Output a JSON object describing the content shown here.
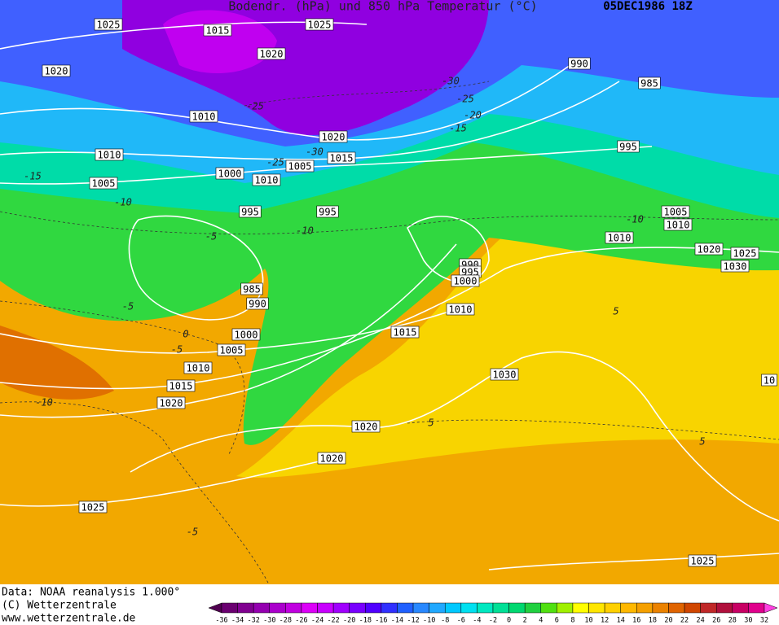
{
  "header": {
    "title": "Bodendr. (hPa) und 850 hPa Temperatur (°C)",
    "date": "05DEC1986 18Z"
  },
  "isobar_labels": [
    1025,
    1015,
    1025,
    1020,
    1020,
    990,
    985,
    1010,
    1020,
    995,
    1010,
    1015,
    1005,
    1000,
    1010,
    1005,
    995,
    995,
    1005,
    1010,
    1010,
    1020,
    1025,
    1030,
    990,
    995,
    1000,
    985,
    990,
    1010,
    1015,
    1000,
    1005,
    1010,
    1015,
    1020,
    1030,
    1020,
    1020,
    1025,
    1025,
    10
  ],
  "temperature_labels": [
    -25,
    -30,
    -25,
    -15,
    -20,
    -30,
    -25,
    -15,
    -10,
    -10,
    -5,
    -10,
    -5,
    0,
    -5,
    -10,
    5,
    5,
    5,
    -5
  ],
  "footer": {
    "lines": [
      "Data: NOAA reanalysis 1.000°",
      "(C) Wetterzentrale",
      "www.wetterzentrale.de"
    ]
  },
  "legend": {
    "labels": [
      -36,
      -34,
      -32,
      -30,
      -28,
      -26,
      -24,
      -22,
      -20,
      -18,
      -16,
      -14,
      -12,
      -10,
      -8,
      -6,
      -4,
      -2,
      0,
      2,
      4,
      6,
      8,
      10,
      12,
      14,
      16,
      18,
      20,
      22,
      24,
      26,
      28,
      30,
      32
    ],
    "colors": [
      "#500050",
      "#6a0070",
      "#800090",
      "#9400b0",
      "#aa00cc",
      "#c000e0",
      "#dc00f8",
      "#c800ff",
      "#a000ff",
      "#7800ff",
      "#5000ff",
      "#3030ff",
      "#2060ff",
      "#2888ff",
      "#20a8ff",
      "#00c8ff",
      "#00e0f0",
      "#00e8c0",
      "#00e096",
      "#00d870",
      "#20d040",
      "#50e010",
      "#a0f000",
      "#ffff00",
      "#ffe600",
      "#ffd000",
      "#ffb800",
      "#f5a000",
      "#eb8200",
      "#e06400",
      "#d04600",
      "#c02828",
      "#b0103c",
      "#c80064",
      "#e0008c",
      "#ff40e0"
    ]
  }
}
